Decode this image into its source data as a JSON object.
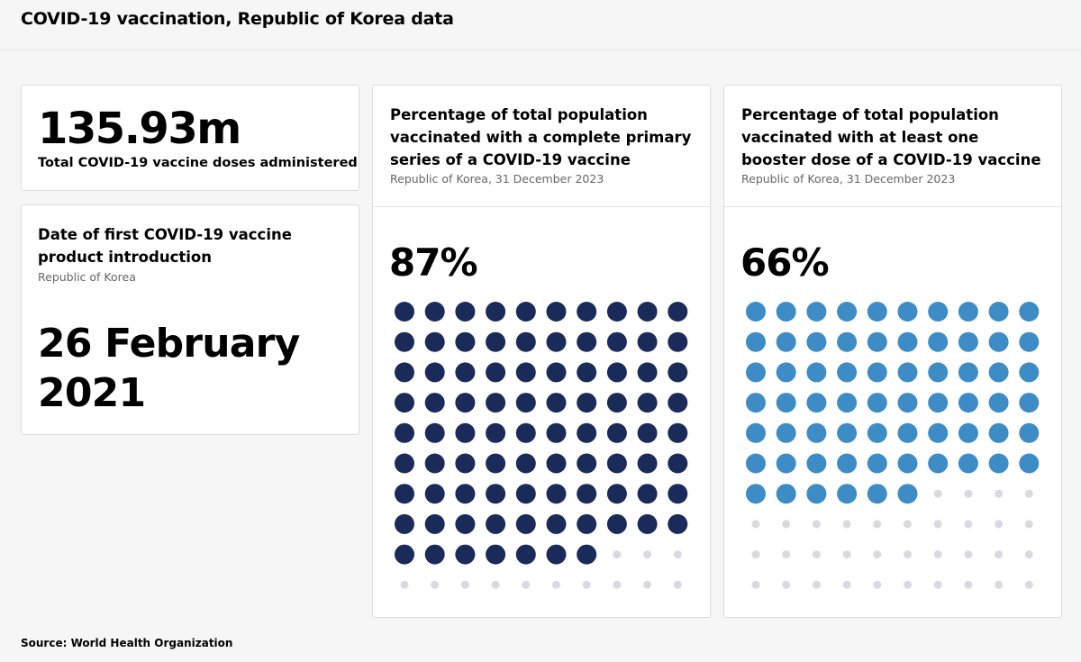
{
  "header": {
    "title": "COVID-19 vaccination, Republic of Korea data"
  },
  "doses_card": {
    "value": "135.93m",
    "label": "Total COVID-19 vaccine doses administered"
  },
  "date_card": {
    "title": "Date of first COVID-19 vaccine product introduction",
    "subtitle": "Republic of Korea",
    "value": "26 February 2021"
  },
  "chart_data": [
    {
      "type": "waffle",
      "title": "Percentage of total population vaccinated with a complete primary series of a COVID-19 vaccine",
      "subtitle": "Republic of Korea, 31 December 2023",
      "value": 87,
      "value_label": "87%",
      "total_dots": 100,
      "color": "#1a2b5a",
      "empty_color": "#d9d9e2"
    },
    {
      "type": "waffle",
      "title": "Percentage of total population vaccinated with at least one booster dose of a COVID-19 vaccine",
      "subtitle": "Republic of Korea, 31 December 2023",
      "value": 66,
      "value_label": "66%",
      "total_dots": 100,
      "color": "#3d8cc6",
      "empty_color": "#d9d9e2"
    }
  ],
  "footer": {
    "source": "Source: World Health Organization"
  }
}
